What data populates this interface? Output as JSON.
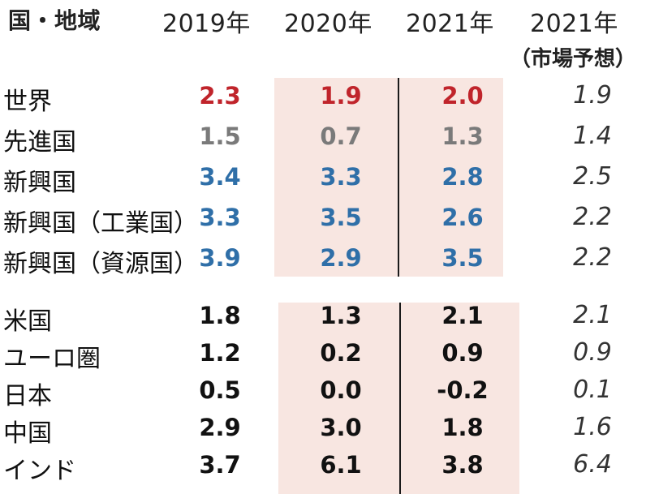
{
  "headers": {
    "region": "国・地域",
    "y2019": "2019年",
    "y2020": "2020年",
    "y2021": "2021年",
    "y2021f": "2021年",
    "y2021f_sub": "（市場予想）"
  },
  "colors": {
    "red": "#c0242b",
    "gray": "#7a7a7a",
    "blue": "#2f6fa8",
    "black": "#111111",
    "shade": "#f8e6e1"
  },
  "group1": [
    {
      "label": "世界",
      "v2019": "2.3",
      "v2020": "1.9",
      "v2021": "2.0",
      "forecast": "1.9",
      "color": "#c0242b"
    },
    {
      "label": "先進国",
      "v2019": "1.5",
      "v2020": "0.7",
      "v2021": "1.3",
      "forecast": "1.4",
      "color": "#7a7a7a"
    },
    {
      "label": "新興国",
      "v2019": "3.4",
      "v2020": "3.3",
      "v2021": "2.8",
      "forecast": "2.5",
      "color": "#2f6fa8"
    },
    {
      "label": "新興国（工業国）",
      "v2019": "3.3",
      "v2020": "3.5",
      "v2021": "2.6",
      "forecast": "2.2",
      "color": "#2f6fa8"
    },
    {
      "label": "新興国（資源国）",
      "v2019": "3.9",
      "v2020": "2.9",
      "v2021": "3.5",
      "forecast": "2.2",
      "color": "#2f6fa8"
    }
  ],
  "group2": [
    {
      "label": "米国",
      "v2019": "1.8",
      "v2020": "1.3",
      "v2021": "2.1",
      "forecast": "2.1",
      "color": "#111111"
    },
    {
      "label": "ユーロ圏",
      "v2019": "1.2",
      "v2020": "0.2",
      "v2021": "0.9",
      "forecast": "0.9",
      "color": "#111111"
    },
    {
      "label": "日本",
      "v2019": "0.5",
      "v2020": "0.0",
      "v2021": "-0.2",
      "forecast": "0.1",
      "color": "#111111"
    },
    {
      "label": "中国",
      "v2019": "2.9",
      "v2020": "3.0",
      "v2021": "1.8",
      "forecast": "1.6",
      "color": "#111111"
    },
    {
      "label": "インド",
      "v2019": "3.7",
      "v2020": "6.1",
      "v2021": "3.8",
      "forecast": "6.4",
      "color": "#111111"
    }
  ]
}
